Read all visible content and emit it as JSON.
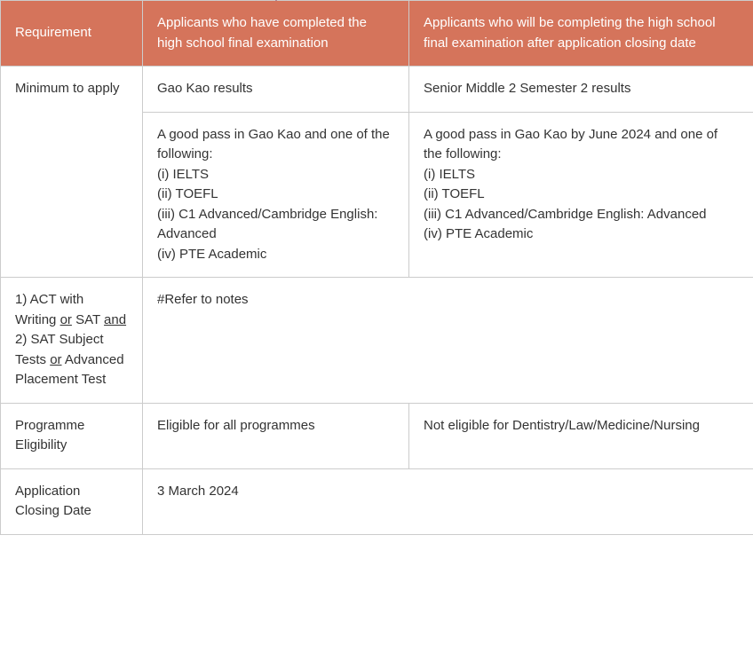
{
  "table": {
    "header_bg": "#d5745b",
    "header_fg": "#ffffff",
    "border_color": "#cccccc",
    "text_color": "#333333",
    "columns": {
      "req": {
        "label": "Requirement"
      },
      "done": {
        "label": "Applicants who have completed the high school final examination"
      },
      "will": {
        "label": "Applicants who will be completing the high school final examination after application closing date"
      }
    },
    "rows": {
      "minToApply": {
        "req": "Minimum to apply",
        "r1_done": "Gao Kao results",
        "r1_will": "Senior Middle 2 Semester 2 results",
        "r2_done": [
          "A good pass in Gao Kao and one of the following:",
          "(i) IELTS",
          "(ii) TOEFL",
          "(iii) C1 Advanced/Cambridge English: Advanced",
          "(iv) PTE Academic"
        ],
        "r2_will": [
          "A good pass in Gao Kao by June 2024 and one of the following:",
          "(i) IELTS",
          "(ii) TOEFL",
          "(iii) C1 Advanced/Cambridge English: Advanced",
          "(iv) PTE Academic"
        ]
      },
      "actSat": {
        "req_parts": {
          "p1a": "1) ACT with Writing ",
          "p1or": "or",
          "p1b": " SAT ",
          "p1and": "and",
          "p2a": "2) SAT Subject Tests ",
          "p2or": "or",
          "p2b": " Advanced Placement Test"
        },
        "val": "#Refer to notes"
      },
      "progElig": {
        "req": "Programme Eligibility",
        "done": "Eligible for all programmes",
        "will": "Not eligible for Dentistry/Law/Medicine/Nursing"
      },
      "closeDate": {
        "req": "Application Closing Date",
        "val": "3 March 2024"
      }
    }
  }
}
